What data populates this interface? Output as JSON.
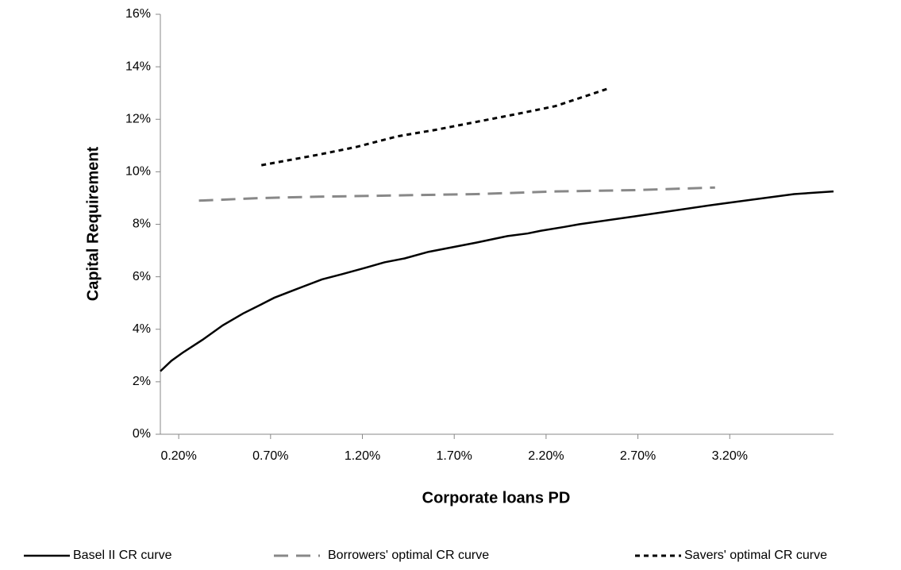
{
  "chart_data": {
    "type": "line",
    "x_label": "Corporate loans PD",
    "y_label": "Capital Requirement",
    "xlim": [
      0.1,
      3.765
    ],
    "ylim": [
      0,
      16
    ],
    "xticks": [
      {
        "value": 0.2,
        "label": "0.20%"
      },
      {
        "value": 0.7,
        "label": "0.70%"
      },
      {
        "value": 1.2,
        "label": "1.20%"
      },
      {
        "value": 1.7,
        "label": "1.70%"
      },
      {
        "value": 2.2,
        "label": "2.20%"
      },
      {
        "value": 2.7,
        "label": "2.70%"
      },
      {
        "value": 3.2,
        "label": "3.20%"
      }
    ],
    "yticks": [
      {
        "value": 0,
        "label": "0%"
      },
      {
        "value": 2,
        "label": "2%"
      },
      {
        "value": 4,
        "label": "4%"
      },
      {
        "value": 6,
        "label": "6%"
      },
      {
        "value": 8,
        "label": "8%"
      },
      {
        "value": 10,
        "label": "10%"
      },
      {
        "value": 12,
        "label": "12%"
      },
      {
        "value": 14,
        "label": "14%"
      },
      {
        "value": 16,
        "label": "16%"
      }
    ],
    "legend": "bottom",
    "series": [
      {
        "name": "Basel II CR curve",
        "color": "#000000",
        "dash": "solid",
        "x": [
          0.1,
          0.16,
          0.22,
          0.33,
          0.44,
          0.55,
          0.65,
          0.72,
          0.83,
          0.98,
          1.09,
          1.22,
          1.32,
          1.43,
          1.56,
          1.82,
          1.99,
          2.1,
          2.17,
          2.3,
          2.38,
          2.68,
          3.12,
          3.55,
          3.765
        ],
        "values": [
          2.4,
          2.8,
          3.1,
          3.6,
          4.15,
          4.6,
          4.95,
          5.2,
          5.5,
          5.9,
          6.1,
          6.35,
          6.55,
          6.7,
          6.95,
          7.3,
          7.55,
          7.65,
          7.75,
          7.9,
          8.0,
          8.3,
          8.75,
          9.15,
          9.25
        ]
      },
      {
        "name": "Borrowers' optimal CR curve",
        "color": "#888888",
        "dash": "long",
        "x": [
          0.31,
          0.65,
          0.96,
          1.39,
          1.82,
          2.25,
          2.68,
          3.12
        ],
        "values": [
          8.9,
          9.0,
          9.05,
          9.1,
          9.15,
          9.25,
          9.3,
          9.4
        ]
      },
      {
        "name": "Savers' optimal CR curve",
        "color": "#000000",
        "dash": "short",
        "x": [
          0.65,
          0.96,
          1.17,
          1.39,
          1.6,
          1.82,
          2.04,
          2.25,
          2.53
        ],
        "values": [
          10.25,
          10.65,
          10.95,
          11.35,
          11.6,
          11.9,
          12.2,
          12.5,
          13.15
        ]
      }
    ]
  }
}
